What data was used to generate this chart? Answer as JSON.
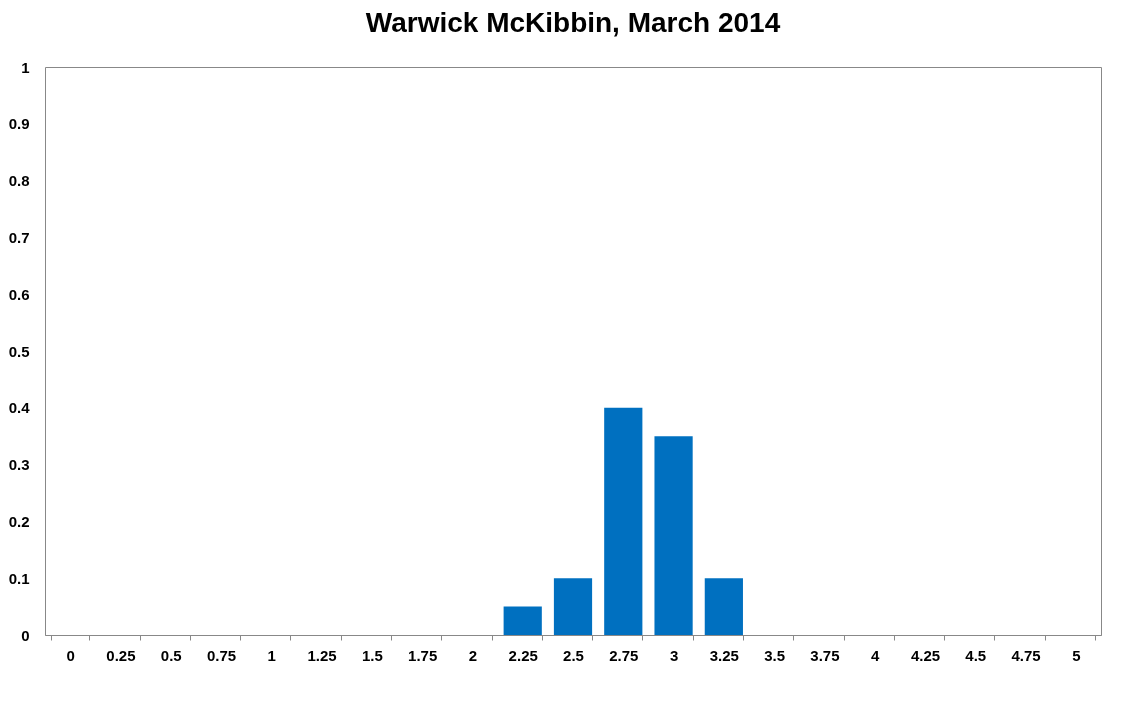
{
  "chart_data": {
    "type": "bar",
    "title": "Warwick McKibbin, March 2014",
    "categories": [
      "0",
      "0.25",
      "0.5",
      "0.75",
      "1",
      "1.25",
      "1.5",
      "1.75",
      "2",
      "2.25",
      "2.5",
      "2.75",
      "3",
      "3.25",
      "3.5",
      "3.75",
      "4",
      "4.25",
      "4.5",
      "4.75",
      "5"
    ],
    "values": [
      0,
      0,
      0,
      0,
      0,
      0,
      0,
      0,
      0,
      0.05,
      0.1,
      0.4,
      0.35,
      0.1,
      0,
      0,
      0,
      0,
      0,
      0,
      0
    ],
    "color": "#0070c0",
    "ylim": [
      0,
      1
    ],
    "yticks": [
      0,
      0.1,
      0.2,
      0.3,
      0.4,
      0.5,
      0.6,
      0.7,
      0.8,
      0.9,
      1
    ],
    "grid": false
  }
}
